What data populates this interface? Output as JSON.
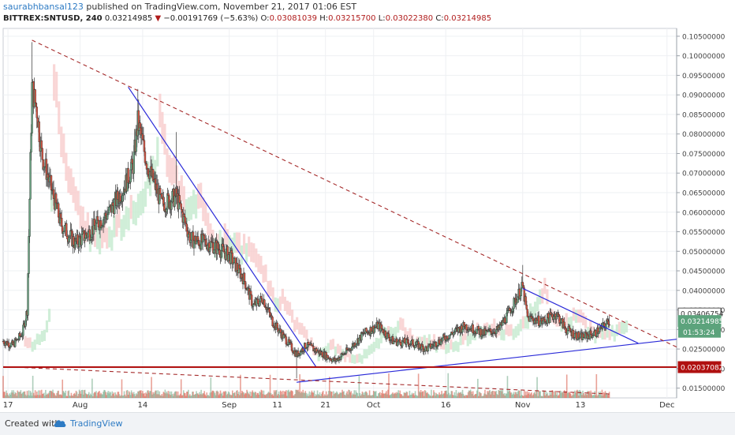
{
  "header": {
    "user": "saurabhbansal123",
    "published_text": "published on TradingView.com, November 21, 2017 01:06 EST",
    "symbol": "BITTREX:SNTUSD, 240",
    "last": "0.03214985",
    "change_arrow": "▼",
    "change": "−0.00191769 (−5.63%)",
    "o_label": "O:",
    "o_value": "0.03081039",
    "h_label": "H:",
    "h_value": "0.03215700",
    "l_label": "L:",
    "l_value": "0.03022380",
    "c_label": "C:",
    "c_value": "0.03214985"
  },
  "footer": {
    "created_with": "Created with",
    "brand": "TradingView",
    "logo_icon": "tradingview-cloud-icon"
  },
  "colors": {
    "up": "#6ba583",
    "down": "#d75442",
    "trendline_blue": "#2a2ad8",
    "dashed_red": "#a52a2a",
    "support_red": "#b01010",
    "cloud_green": "#c8ecd2",
    "cloud_red": "#f8cfcf",
    "last_price_tag": "#5ca37c",
    "support_tag": "#b01010"
  },
  "chart_data": {
    "type": "candlestick",
    "title": "",
    "xlabel": "",
    "ylabel": "",
    "ylim": [
      0.0125,
      0.107
    ],
    "grid": true,
    "y_ticks": [
      "0.10500000",
      "0.10000000",
      "0.09500000",
      "0.09000000",
      "0.08500000",
      "0.08000000",
      "0.07500000",
      "0.07000000",
      "0.06500000",
      "0.06000000",
      "0.05500000",
      "0.05000000",
      "0.04500000",
      "0.04000000",
      "0.03500000",
      "0.03000000",
      "0.02500000",
      "0.02000000",
      "0.01500000"
    ],
    "x_ticks": [
      "17",
      "Aug",
      "14",
      "Sep",
      "11",
      "21",
      "Oct",
      "16",
      "Nov",
      "13",
      "Dec"
    ],
    "x_tick_dates": [
      "2017-07-17",
      "2017-08-01",
      "2017-08-14",
      "2017-09-01",
      "2017-09-11",
      "2017-09-21",
      "2017-10-01",
      "2017-10-16",
      "2017-11-01",
      "2017-11-13",
      "2017-12-01"
    ],
    "x_range": [
      "2017-07-16",
      "2017-12-03"
    ],
    "price_path": [
      [
        "2017-07-16",
        0.027
      ],
      [
        "2017-07-18",
        0.026
      ],
      [
        "2017-07-20",
        0.029
      ],
      [
        "2017-07-21",
        0.035
      ],
      [
        "2017-07-22",
        0.092
      ],
      [
        "2017-07-23",
        0.086
      ],
      [
        "2017-07-24",
        0.075
      ],
      [
        "2017-07-26",
        0.066
      ],
      [
        "2017-07-28",
        0.057
      ],
      [
        "2017-07-31",
        0.052
      ],
      [
        "2017-08-03",
        0.055
      ],
      [
        "2017-08-07",
        0.06
      ],
      [
        "2017-08-10",
        0.066
      ],
      [
        "2017-08-12",
        0.072
      ],
      [
        "2017-08-13",
        0.083
      ],
      [
        "2017-08-15",
        0.072
      ],
      [
        "2017-08-18",
        0.062
      ],
      [
        "2017-08-21",
        0.064
      ],
      [
        "2017-08-24",
        0.053
      ],
      [
        "2017-08-28",
        0.052
      ],
      [
        "2017-09-01",
        0.049
      ],
      [
        "2017-09-04",
        0.043
      ],
      [
        "2017-09-06",
        0.036
      ],
      [
        "2017-09-08",
        0.038
      ],
      [
        "2017-09-10",
        0.032
      ],
      [
        "2017-09-13",
        0.027
      ],
      [
        "2017-09-15",
        0.0235
      ],
      [
        "2017-09-17",
        0.026
      ],
      [
        "2017-09-20",
        0.024
      ],
      [
        "2017-09-23",
        0.022
      ],
      [
        "2017-09-26",
        0.025
      ],
      [
        "2017-09-29",
        0.029
      ],
      [
        "2017-10-02",
        0.031
      ],
      [
        "2017-10-05",
        0.027
      ],
      [
        "2017-10-09",
        0.0265
      ],
      [
        "2017-10-12",
        0.025
      ],
      [
        "2017-10-16",
        0.028
      ],
      [
        "2017-10-20",
        0.031
      ],
      [
        "2017-10-24",
        0.029
      ],
      [
        "2017-10-27",
        0.03
      ],
      [
        "2017-10-29",
        0.034
      ],
      [
        "2017-11-01",
        0.041
      ],
      [
        "2017-11-02",
        0.033
      ],
      [
        "2017-11-05",
        0.032
      ],
      [
        "2017-11-08",
        0.034
      ],
      [
        "2017-11-10",
        0.03
      ],
      [
        "2017-11-13",
        0.028
      ],
      [
        "2017-11-16",
        0.029
      ],
      [
        "2017-11-18",
        0.031
      ],
      [
        "2017-11-19",
        0.0322
      ]
    ],
    "spike_highs": [
      [
        "2017-07-22",
        0.1035
      ],
      [
        "2017-08-13",
        0.0915
      ],
      [
        "2017-08-21",
        0.0805
      ],
      [
        "2017-09-15",
        0.0175
      ],
      [
        "2017-11-01",
        0.0465
      ],
      [
        "2017-11-19",
        0.0335
      ]
    ],
    "trendlines_blue": [
      [
        [
          "2017-08-11",
          0.092
        ],
        [
          "2017-09-19",
          0.0205
        ]
      ],
      [
        [
          "2017-09-15",
          0.0165
        ],
        [
          "2017-12-03",
          0.0275
        ]
      ],
      [
        [
          "2017-11-01",
          0.0405
        ],
        [
          "2017-11-25",
          0.0265
        ]
      ]
    ],
    "trendlines_dashed": [
      [
        [
          "2017-07-22",
          0.104
        ],
        [
          "2017-12-03",
          0.0255
        ]
      ],
      [
        [
          "2017-07-16",
          0.0205
        ],
        [
          "2017-11-19",
          0.0135
        ]
      ]
    ],
    "horizontal_support": 0.02037082,
    "price_labels": [
      {
        "value": 0.03406754,
        "text": "0.03406754",
        "style": "outline"
      },
      {
        "value": 0.03214985,
        "text": "0.03214985",
        "style": "last"
      },
      {
        "value": 0.02037082,
        "text": "0.02037082",
        "style": "support"
      }
    ],
    "countdown": "01:53:24"
  }
}
